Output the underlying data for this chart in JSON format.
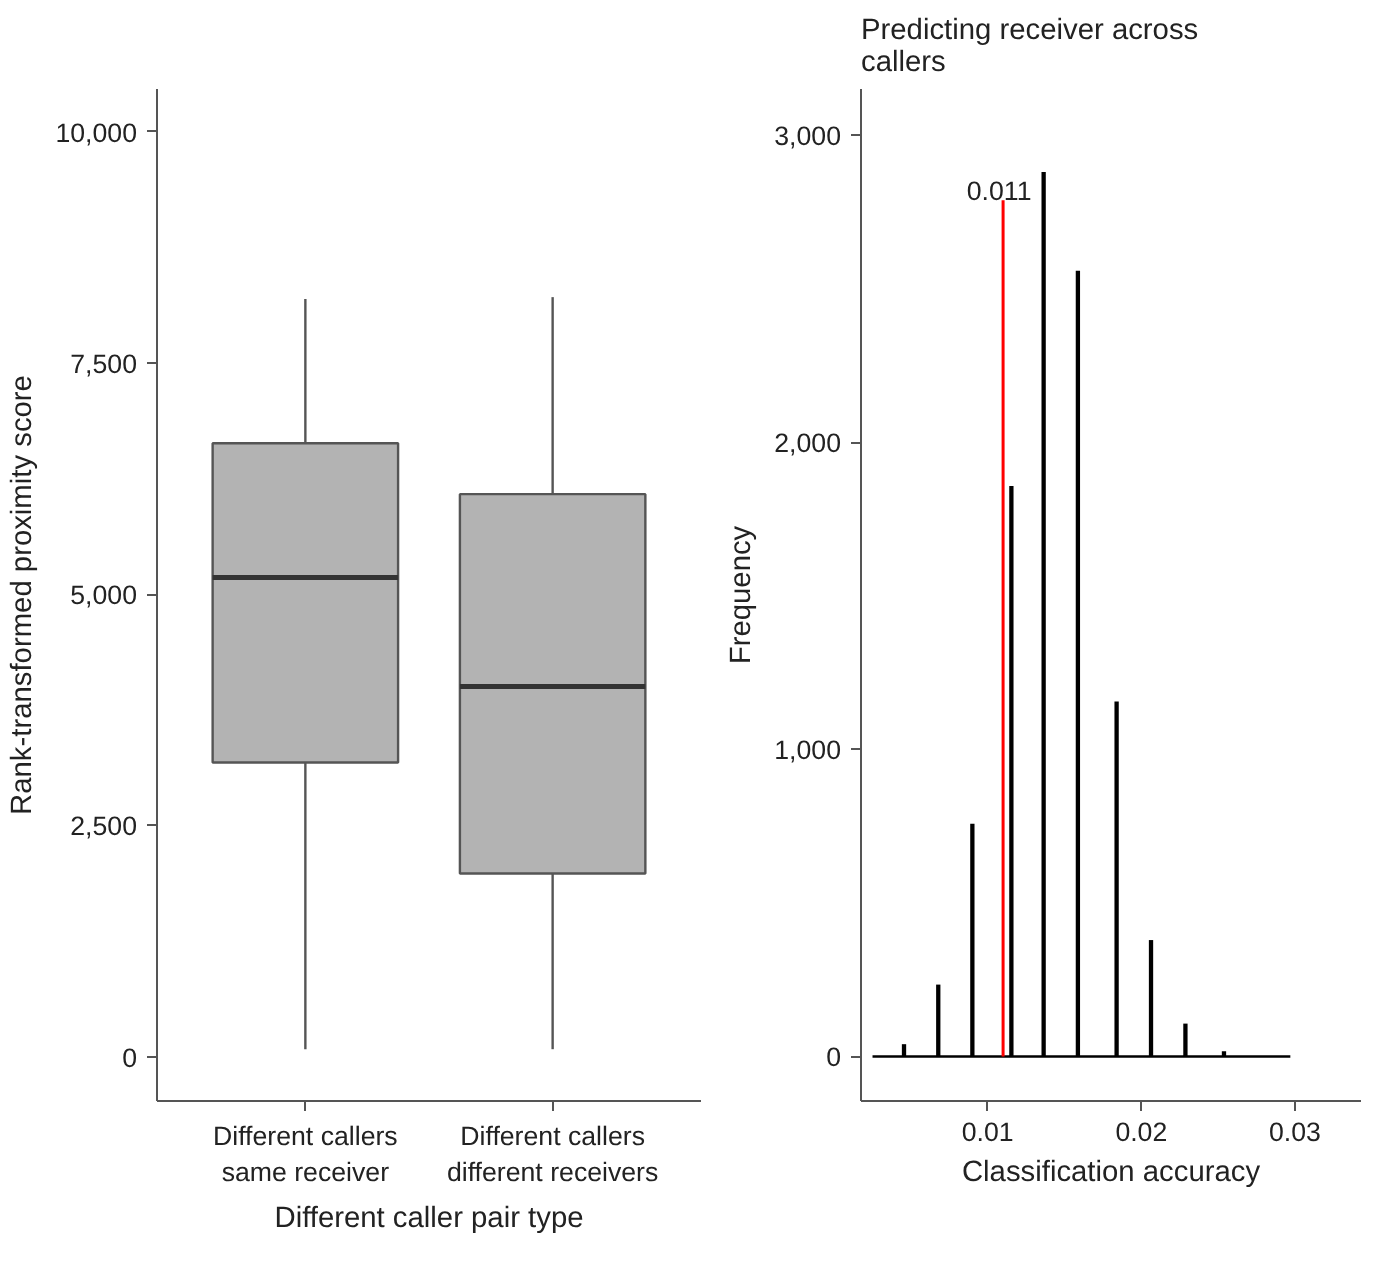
{
  "chart_data": [
    {
      "type": "box",
      "categories": [
        "Different callers\nsame receiver",
        "Different callers\ndifferent receivers"
      ],
      "boxes": [
        {
          "low": 80,
          "q1": 3180,
          "median": 5180,
          "q3": 6630,
          "high": 8190
        },
        {
          "low": 80,
          "q1": 1980,
          "median": 4000,
          "q3": 6080,
          "high": 8210
        }
      ],
      "color": "#b3b3b3",
      "xlabel": "Different caller pair type",
      "ylabel": "Rank-transformed proximity score",
      "ylim": [
        -480,
        10460
      ],
      "yticks": [
        0,
        {
          "value": 2500,
          "label": "2,500"
        },
        {
          "value": 5000,
          "label": "5,000"
        },
        {
          "value": 7500,
          "label": "7,500"
        },
        {
          "value": 10000,
          "label": "10,000"
        }
      ]
    },
    {
      "type": "bar",
      "title": "Predicting receiver across\ncallers",
      "xlabel": "Classification accuracy",
      "ylabel": "Frequency",
      "series": [
        {
          "type": "bar",
          "color": "#000000",
          "x": [
            0.00455,
            0.00678,
            0.009,
            0.01154,
            0.01364,
            0.01587,
            0.01839,
            0.02063,
            0.02287,
            0.02538
          ],
          "values": [
            40,
            234,
            758,
            1857,
            2880,
            2558,
            1156,
            379,
            107,
            17
          ]
        },
        {
          "type": "line",
          "color": "#000000",
          "x": [
            0.0025,
            0.0297
          ],
          "values": [
            0,
            0
          ]
        }
      ],
      "ref_lines": [
        {
          "axis": "x",
          "value": 0.011,
          "label": "0.011",
          "color": "#ff0000"
        }
      ],
      "xlim": [
        0.00175,
        0.0343
      ],
      "xticks": [
        0.01,
        0.02,
        0.03
      ],
      "ylim": [
        -145,
        3150
      ],
      "yticks": [
        0,
        {
          "value": 1000,
          "label": "1,000"
        },
        {
          "value": 2000,
          "label": "2,000"
        },
        {
          "value": 3000,
          "label": "3,000"
        }
      ]
    }
  ]
}
